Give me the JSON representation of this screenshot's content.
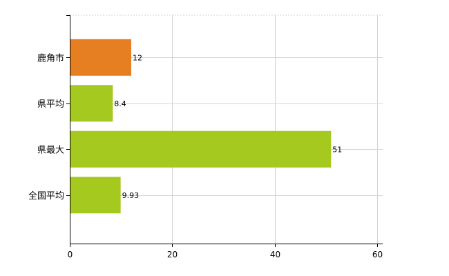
{
  "chart_data": {
    "type": "bar",
    "orientation": "horizontal",
    "categories": [
      "鹿角市",
      "県平均",
      "県最大",
      "全国平均"
    ],
    "values": [
      12,
      8.4,
      51,
      9.93
    ],
    "value_labels": [
      "12",
      "8.4",
      "51",
      "9.93"
    ],
    "bar_colors": [
      "#e67e22",
      "#a5c91f",
      "#a5c91f",
      "#a5c91f"
    ],
    "xlim": [
      0,
      60
    ],
    "x_ticks": [
      0,
      20,
      40,
      60
    ],
    "x_tick_labels": [
      "0",
      "20",
      "40",
      "60"
    ],
    "grid": true,
    "legend": "none",
    "title": "",
    "xlabel": "",
    "ylabel": ""
  }
}
